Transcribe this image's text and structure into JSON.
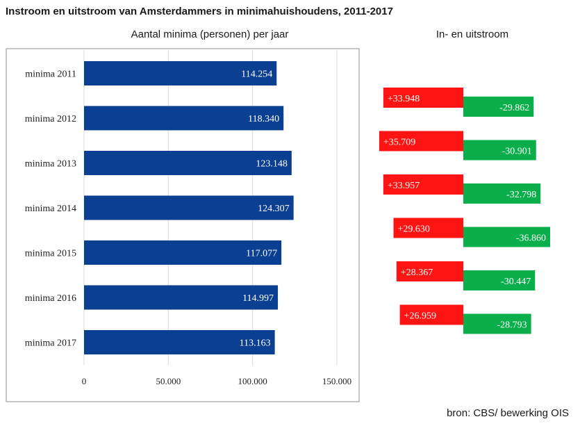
{
  "title": "Instroom en uitstroom van Amsterdammers in minimahuishoudens, 2011-2017",
  "source": "bron: CBS/ bewerking OIS",
  "colors": {
    "bar": "#0b3f91",
    "inflow": "#ff1414",
    "outflow": "#0aaf4b",
    "grid": "#d9d9d9",
    "frame": "#8c8c8c"
  },
  "chart_data": [
    {
      "type": "bar",
      "orientation": "horizontal",
      "title": "Aantal minima (personen) per jaar",
      "categories": [
        "minima 2011",
        "minima 2012",
        "minima 2013",
        "minima 2014",
        "minima 2015",
        "minima 2016",
        "minima 2017"
      ],
      "values": [
        114254,
        118340,
        123148,
        124307,
        117077,
        114997,
        113163
      ],
      "value_labels": [
        "114.254",
        "118.340",
        "123.148",
        "124.307",
        "117.077",
        "114.997",
        "113.163"
      ],
      "xlim": [
        0,
        150000
      ],
      "xticks": [
        0,
        50000,
        100000,
        150000
      ],
      "xtick_labels": [
        "0",
        "50.000",
        "100.000",
        "150.000"
      ],
      "grid": true
    },
    {
      "type": "bar",
      "orientation": "horizontal",
      "title": "In- en uitstroom",
      "inflow": [
        33948,
        35709,
        33957,
        29630,
        28367,
        26959
      ],
      "inflow_labels": [
        "+33.948",
        "+35.709",
        "+33.957",
        "+29.630",
        "+28.367",
        "+26.959"
      ],
      "outflow": [
        -29862,
        -30901,
        -32798,
        -36860,
        -30447,
        -28793
      ],
      "outflow_labels": [
        "-29.862",
        "-30.901",
        "-32.798",
        "-36.860",
        "-30.447",
        "-28.793"
      ]
    }
  ]
}
